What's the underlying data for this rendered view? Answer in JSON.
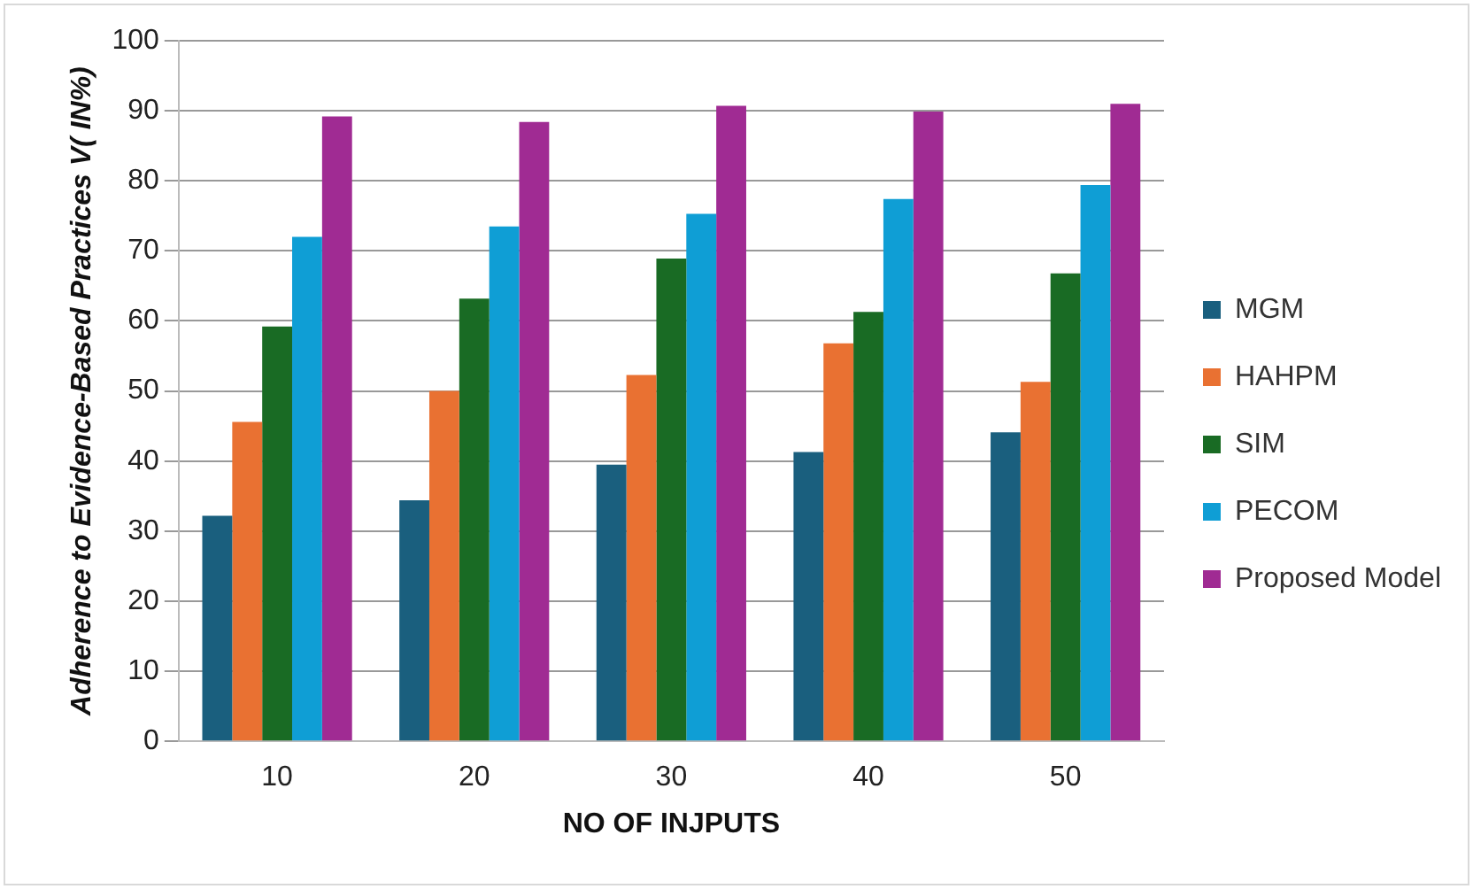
{
  "chart_data": {
    "type": "bar",
    "xlabel": "NO OF INJPUTS",
    "ylabel": "Adherence to Evidence-Based Practices V( IN%)",
    "categories": [
      "10",
      "20",
      "30",
      "40",
      "50"
    ],
    "series": [
      {
        "name": "MGM",
        "color": "#1a5f7e",
        "values": [
          32.2,
          34.4,
          39.5,
          41.3,
          44.1
        ]
      },
      {
        "name": "HAHPM",
        "color": "#e97132",
        "values": [
          45.6,
          50,
          52.3,
          56.8,
          51.3
        ]
      },
      {
        "name": "SIM",
        "color": "#196b24",
        "values": [
          59.2,
          63.2,
          68.9,
          61.3,
          66.8
        ]
      },
      {
        "name": "PECOM",
        "color": "#0f9ed5",
        "values": [
          72,
          73.5,
          75.3,
          77.4,
          79.4
        ]
      },
      {
        "name": "Proposed Model",
        "color": "#a02b93",
        "values": [
          89.2,
          88.4,
          90.7,
          89.9,
          91
        ]
      }
    ],
    "ylim": [
      0,
      100
    ],
    "yticks": [
      0,
      10,
      20,
      30,
      40,
      50,
      60,
      70,
      80,
      90,
      100
    ],
    "grid": "y",
    "legend": "right"
  }
}
